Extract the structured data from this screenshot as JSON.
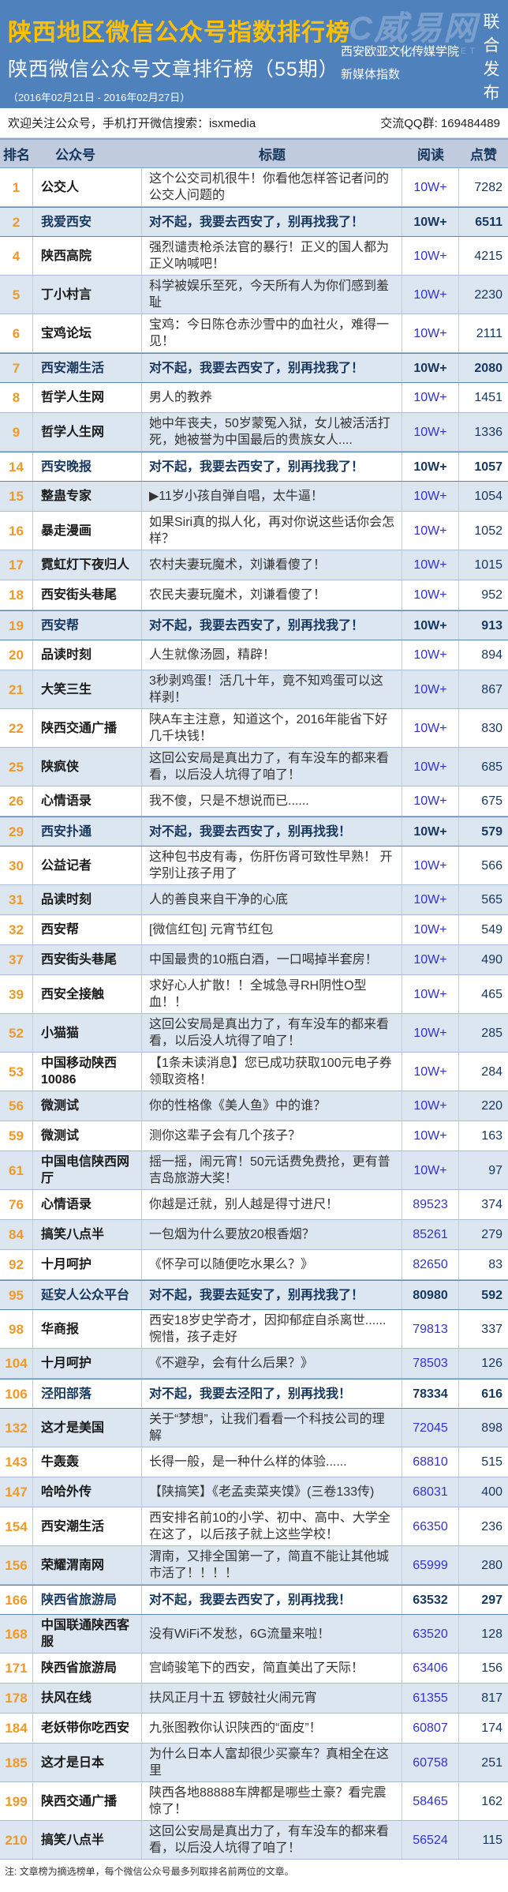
{
  "header": {
    "title": "陕西地区微信公众号指数排行榜",
    "subtitle": "陕西微信公众号文章排行榜（55期）",
    "date_range": "（2016年02月21日 - 2016年02月27日）",
    "org_line1": "西安欧亚文化传媒学院",
    "org_line2": "新媒体指数",
    "joint_release": "联合发布",
    "watermark_logo": "C威易网",
    "watermark_url": "WWW.WESTE.NET",
    "banner_bg_color": "#4f81bd",
    "title_color": "#ffc000"
  },
  "info_bar": {
    "left": "欢迎关注公众号，手机打开微信搜索：isxmedia",
    "right": "交流QQ群: 169484489"
  },
  "table": {
    "columns": [
      "排名",
      "公众号",
      "标题",
      "阅读",
      "点赞"
    ],
    "rank_color": "#ef9929",
    "reads_color": "#3333cc",
    "likes_color": "#17365d",
    "highlight_text_color": "#17375e",
    "alt_row_color": "#dce6f1",
    "rows": [
      {
        "rank": "1",
        "account": "公交人",
        "title": "这个公交司机很牛！你看他怎样答记者问的公交人问题的",
        "reads": "10W+",
        "likes": "7282",
        "highlight": false
      },
      {
        "rank": "2",
        "account": "我爱西安",
        "title": "对不起，我要去西安了，别再找我了！",
        "reads": "10W+",
        "likes": "6511",
        "highlight": true
      },
      {
        "rank": "4",
        "account": "陕西高院",
        "title": "强烈谴责枪杀法官的暴行！正义的国人都为正义呐喊吧！",
        "reads": "10W+",
        "likes": "4215",
        "highlight": false
      },
      {
        "rank": "5",
        "account": "丁小村言",
        "title": "科学被娱乐至死，今天所有人为你们感到羞耻",
        "reads": "10W+",
        "likes": "2230",
        "highlight": false
      },
      {
        "rank": "6",
        "account": "宝鸡论坛",
        "title": "宝鸡：今日陈仓赤沙雪中的血社火，难得一见！",
        "reads": "10W+",
        "likes": "2111",
        "highlight": false
      },
      {
        "rank": "7",
        "account": "西安潮生活",
        "title": "对不起，我要去西安了，别再找我了！",
        "reads": "10W+",
        "likes": "2080",
        "highlight": true
      },
      {
        "rank": "8",
        "account": "哲学人生网",
        "title": "男人的教养",
        "reads": "10W+",
        "likes": "1451",
        "highlight": false
      },
      {
        "rank": "9",
        "account": "哲学人生网",
        "title": "她中年丧夫，50岁蒙冤入狱，女儿被活活打死，她被誉为中国最后的贵族女人....",
        "reads": "10W+",
        "likes": "1336",
        "highlight": false
      },
      {
        "rank": "14",
        "account": "西安晚报",
        "title": "对不起，我要去西安了，别再找我了！",
        "reads": "10W+",
        "likes": "1057",
        "highlight": true
      },
      {
        "rank": "15",
        "account": "整蛊专家",
        "title": "▶11岁小孩自弹自唱，太牛逼！",
        "reads": "10W+",
        "likes": "1054",
        "highlight": false
      },
      {
        "rank": "16",
        "account": "暴走漫画",
        "title": "如果Siri真的拟人化，再对你说这些话你会怎样？",
        "reads": "10W+",
        "likes": "1052",
        "highlight": false
      },
      {
        "rank": "17",
        "account": "霓虹灯下夜归人",
        "title": "农村夫妻玩魔术，刘谦看傻了！",
        "reads": "10W+",
        "likes": "1015",
        "highlight": false
      },
      {
        "rank": "18",
        "account": "西安街头巷尾",
        "title": "农民夫妻玩魔术，刘谦看傻了！",
        "reads": "10W+",
        "likes": "952",
        "highlight": false
      },
      {
        "rank": "19",
        "account": "西安帮",
        "title": "对不起，我要去西安了，别再找我了！",
        "reads": "10W+",
        "likes": "913",
        "highlight": true
      },
      {
        "rank": "20",
        "account": "品读时刻",
        "title": "人生就像汤圆，精辟！",
        "reads": "10W+",
        "likes": "894",
        "highlight": false
      },
      {
        "rank": "21",
        "account": "大笑三生",
        "title": "3秒剥鸡蛋！活几十年，竟不知鸡蛋可以这样剥！",
        "reads": "10W+",
        "likes": "867",
        "highlight": false
      },
      {
        "rank": "22",
        "account": "陕西交通广播",
        "title": "陕A车主注意，知道这个，2016年能省下好几千块钱！",
        "reads": "10W+",
        "likes": "830",
        "highlight": false
      },
      {
        "rank": "25",
        "account": "陕疯侠",
        "title": "这回公安局是真出力了，有车没车的都来看看，以后没人坑得了咱了！",
        "reads": "10W+",
        "likes": "685",
        "highlight": false
      },
      {
        "rank": "26",
        "account": "心情语录",
        "title": "我不傻，只是不想说而已......",
        "reads": "10W+",
        "likes": "675",
        "highlight": false
      },
      {
        "rank": "29",
        "account": "西安扑通",
        "title": "对不起，我要去西安了，别再找我！",
        "reads": "10W+",
        "likes": "579",
        "highlight": true
      },
      {
        "rank": "30",
        "account": "公益记者",
        "title": "这种包书皮有毒，伤肝伤肾可致性早熟！ 开学别让孩子用了",
        "reads": "10W+",
        "likes": "566",
        "highlight": false
      },
      {
        "rank": "31",
        "account": "品读时刻",
        "title": "人的善良来自干净的心底",
        "reads": "10W+",
        "likes": "565",
        "highlight": false
      },
      {
        "rank": "32",
        "account": "西安帮",
        "title": "[微信红包] 元宵节红包",
        "reads": "10W+",
        "likes": "549",
        "highlight": false
      },
      {
        "rank": "37",
        "account": "西安街头巷尾",
        "title": "中国最贵的10瓶白酒，一口喝掉半套房！",
        "reads": "10W+",
        "likes": "490",
        "highlight": false
      },
      {
        "rank": "39",
        "account": "西安全接触",
        "title": "求好心人扩散！！全城急寻RH阴性O型血！！",
        "reads": "10W+",
        "likes": "465",
        "highlight": false
      },
      {
        "rank": "52",
        "account": "小猫猫",
        "title": "这回公安局是真出力了，有车没车的都来看看，以后没人坑得了咱了！",
        "reads": "10W+",
        "likes": "285",
        "highlight": false
      },
      {
        "rank": "53",
        "account": "中国移动陕西10086",
        "title": "【1条未读消息】您已成功获取100元电子券领取资格！",
        "reads": "10W+",
        "likes": "284",
        "highlight": false
      },
      {
        "rank": "56",
        "account": "微测试",
        "title": "你的性格像《美人鱼》中的谁？",
        "reads": "10W+",
        "likes": "220",
        "highlight": false
      },
      {
        "rank": "59",
        "account": "微测试",
        "title": "测你这辈子会有几个孩子？",
        "reads": "10W+",
        "likes": "163",
        "highlight": false
      },
      {
        "rank": "61",
        "account": "中国电信陕西网厅",
        "title": "摇一摇，闹元宵！50元话费免费抢，更有普吉岛旅游大奖！",
        "reads": "10W+",
        "likes": "97",
        "highlight": false
      },
      {
        "rank": "76",
        "account": "心情语录",
        "title": "你越是迁就，别人越是得寸进尺！",
        "reads": "89523",
        "likes": "374",
        "highlight": false
      },
      {
        "rank": "84",
        "account": "搞笑八点半",
        "title": "一包烟为什么要放20根香烟？",
        "reads": "85261",
        "likes": "279",
        "highlight": false
      },
      {
        "rank": "92",
        "account": "十月呵护",
        "title": "《怀孕可以随便吃水果么？》",
        "reads": "82650",
        "likes": "83",
        "highlight": false
      },
      {
        "rank": "95",
        "account": "延安人公众平台",
        "title": "对不起，我要去延安了，别再找我了！",
        "reads": "80980",
        "likes": "592",
        "highlight": true
      },
      {
        "rank": "98",
        "account": "华商报",
        "title": "西安18岁史学奇才，因抑郁症自杀离世......惋惜，孩子走好",
        "reads": "79813",
        "likes": "337",
        "highlight": false
      },
      {
        "rank": "104",
        "account": "十月呵护",
        "title": "《不避孕，会有什么后果？》",
        "reads": "78503",
        "likes": "126",
        "highlight": false
      },
      {
        "rank": "106",
        "account": "泾阳部落",
        "title": "对不起，我要去泾阳了，别再找我！",
        "reads": "78334",
        "likes": "616",
        "highlight": true
      },
      {
        "rank": "132",
        "account": "这才是美国",
        "title": "关于“梦想”，让我们看看一个科技公司的理解",
        "reads": "72045",
        "likes": "898",
        "highlight": false
      },
      {
        "rank": "143",
        "account": "牛轰轰",
        "title": "长得一般，是一种什么样的体验......",
        "reads": "68810",
        "likes": "515",
        "highlight": false
      },
      {
        "rank": "147",
        "account": "哈哈外传",
        "title": "【陕搞笑】《老孟卖菜夹馍》(三卷133传)",
        "reads": "68031",
        "likes": "400",
        "highlight": false
      },
      {
        "rank": "154",
        "account": "西安潮生活",
        "title": "西安排名前10的小学、初中、高中、大学全在这了，以后孩子就上这些学校！",
        "reads": "66350",
        "likes": "236",
        "highlight": false
      },
      {
        "rank": "156",
        "account": "荣耀渭南网",
        "title": "渭南，又排全国第一了，简直不能让其他城市活了！！！！",
        "reads": "65999",
        "likes": "280",
        "highlight": false
      },
      {
        "rank": "166",
        "account": "陕西省旅游局",
        "title": "对不起，我要去西安了，别再找我！",
        "reads": "63532",
        "likes": "297",
        "highlight": true
      },
      {
        "rank": "168",
        "account": "中国联通陕西客服",
        "title": "没有WiFi不发愁，6G流量来啦！",
        "reads": "63520",
        "likes": "128",
        "highlight": false
      },
      {
        "rank": "171",
        "account": "陕西省旅游局",
        "title": "宫崎骏笔下的西安，简直美出了天际！",
        "reads": "63406",
        "likes": "156",
        "highlight": false
      },
      {
        "rank": "178",
        "account": "扶风在线",
        "title": "扶风正月十五 锣鼓社火闹元宵",
        "reads": "61355",
        "likes": "817",
        "highlight": false
      },
      {
        "rank": "184",
        "account": "老妖带你吃西安",
        "title": "九张图教你认识陕西的“面皮”！",
        "reads": "60807",
        "likes": "174",
        "highlight": false
      },
      {
        "rank": "185",
        "account": "这才是日本",
        "title": "为什么日本人富却很少买豪车？真相全在这里",
        "reads": "60758",
        "likes": "251",
        "highlight": false
      },
      {
        "rank": "199",
        "account": "陕西交通广播",
        "title": "陕西各地88888车牌都是哪些土豪？看完震惊了！",
        "reads": "58465",
        "likes": "162",
        "highlight": false
      },
      {
        "rank": "210",
        "account": "搞笑八点半",
        "title": "这回公安局是真出力了，有车没车的都来看看，以后没人坑得了咱了！",
        "reads": "56524",
        "likes": "115",
        "highlight": false
      }
    ]
  },
  "footer": {
    "note": "注: 文章榜为摘选榜单，每个微信公众号最多列取排名前两位的文章。"
  }
}
